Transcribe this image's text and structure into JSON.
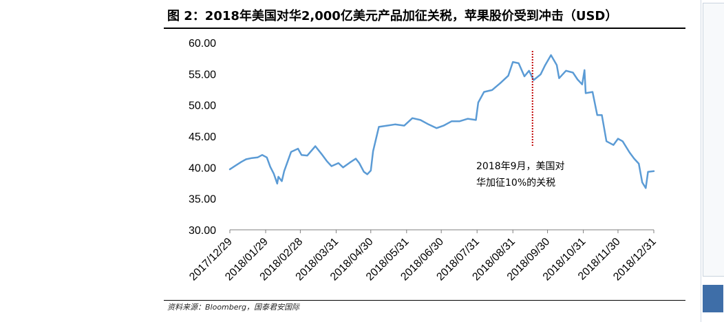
{
  "title": "图 2：2018年美国对华2,000亿美元产品加征关税，苹果股价受到冲击（USD）",
  "source": "资料来源：Bloomberg，国泰君安国际",
  "colors": {
    "line": "#5b9bd5",
    "marker": "#c00000",
    "panel_thumb": "#3e6ea8"
  },
  "chart_data": {
    "type": "line",
    "title": "图 2：2018年美国对华2,000亿美元产品加征关税，苹果股价受到冲击（USD）",
    "xlabel": "",
    "ylabel": "",
    "ylim": [
      30,
      60
    ],
    "y_ticks": [
      "30.00",
      "35.00",
      "40.00",
      "45.00",
      "50.00",
      "55.00",
      "60.00"
    ],
    "x_ticks": [
      "2017/12/29",
      "2018/01/29",
      "2018/02/28",
      "2018/03/31",
      "2018/04/30",
      "2018/05/31",
      "2018/06/30",
      "2018/07/31",
      "2018/08/31",
      "2018/09/30",
      "2018/10/31",
      "2018/11/30",
      "2018/12/31"
    ],
    "grid": false,
    "annotation": {
      "date": "2018/09/17",
      "lines": [
        "2018年9月，美国对",
        "华加征10%的关税"
      ]
    },
    "series": [
      {
        "values": [
          [
            "2017-12-29",
            39.7
          ],
          [
            "2018-01-03",
            40.3
          ],
          [
            "2018-01-08",
            40.9
          ],
          [
            "2018-01-12",
            41.3
          ],
          [
            "2018-01-17",
            41.5
          ],
          [
            "2018-01-22",
            41.6
          ],
          [
            "2018-01-26",
            42.0
          ],
          [
            "2018-01-30",
            41.6
          ],
          [
            "2018-02-02",
            40.1
          ],
          [
            "2018-02-05",
            39.0
          ],
          [
            "2018-02-08",
            37.4
          ],
          [
            "2018-02-09",
            38.5
          ],
          [
            "2018-02-12",
            37.8
          ],
          [
            "2018-02-14",
            39.4
          ],
          [
            "2018-02-20",
            42.5
          ],
          [
            "2018-02-26",
            43.0
          ],
          [
            "2018-03-01",
            42.0
          ],
          [
            "2018-03-06",
            41.9
          ],
          [
            "2018-03-13",
            43.4
          ],
          [
            "2018-03-19",
            42.0
          ],
          [
            "2018-03-23",
            41.0
          ],
          [
            "2018-03-27",
            40.2
          ],
          [
            "2018-04-02",
            40.7
          ],
          [
            "2018-04-06",
            40.0
          ],
          [
            "2018-04-12",
            40.8
          ],
          [
            "2018-04-17",
            41.4
          ],
          [
            "2018-04-20",
            40.7
          ],
          [
            "2018-04-24",
            39.3
          ],
          [
            "2018-04-27",
            38.9
          ],
          [
            "2018-04-30",
            39.5
          ],
          [
            "2018-05-02",
            42.6
          ],
          [
            "2018-05-07",
            46.5
          ],
          [
            "2018-05-14",
            46.7
          ],
          [
            "2018-05-21",
            46.9
          ],
          [
            "2018-05-29",
            46.7
          ],
          [
            "2018-06-05",
            47.9
          ],
          [
            "2018-06-12",
            47.6
          ],
          [
            "2018-06-19",
            46.9
          ],
          [
            "2018-06-26",
            46.3
          ],
          [
            "2018-07-02",
            46.7
          ],
          [
            "2018-07-09",
            47.4
          ],
          [
            "2018-07-16",
            47.4
          ],
          [
            "2018-07-23",
            47.8
          ],
          [
            "2018-07-30",
            47.6
          ],
          [
            "2018-08-01",
            50.4
          ],
          [
            "2018-08-06",
            52.1
          ],
          [
            "2018-08-13",
            52.4
          ],
          [
            "2018-08-20",
            53.5
          ],
          [
            "2018-08-27",
            54.7
          ],
          [
            "2018-08-31",
            56.9
          ],
          [
            "2018-09-05",
            56.7
          ],
          [
            "2018-09-10",
            54.6
          ],
          [
            "2018-09-14",
            55.5
          ],
          [
            "2018-09-18",
            54.0
          ],
          [
            "2018-09-24",
            54.9
          ],
          [
            "2018-09-28",
            56.4
          ],
          [
            "2018-10-03",
            58.0
          ],
          [
            "2018-10-08",
            56.4
          ],
          [
            "2018-10-10",
            54.3
          ],
          [
            "2018-10-16",
            55.5
          ],
          [
            "2018-10-22",
            55.2
          ],
          [
            "2018-10-26",
            54.1
          ],
          [
            "2018-10-30",
            53.3
          ],
          [
            "2018-11-01",
            55.6
          ],
          [
            "2018-11-02",
            51.9
          ],
          [
            "2018-11-08",
            52.1
          ],
          [
            "2018-11-12",
            48.4
          ],
          [
            "2018-11-16",
            48.4
          ],
          [
            "2018-11-20",
            44.2
          ],
          [
            "2018-11-26",
            43.6
          ],
          [
            "2018-11-30",
            44.6
          ],
          [
            "2018-12-04",
            44.2
          ],
          [
            "2018-12-10",
            42.4
          ],
          [
            "2018-12-14",
            41.4
          ],
          [
            "2018-12-18",
            40.6
          ],
          [
            "2018-12-21",
            37.6
          ],
          [
            "2018-12-24",
            36.7
          ],
          [
            "2018-12-26",
            39.3
          ],
          [
            "2018-12-31",
            39.4
          ]
        ]
      }
    ]
  }
}
